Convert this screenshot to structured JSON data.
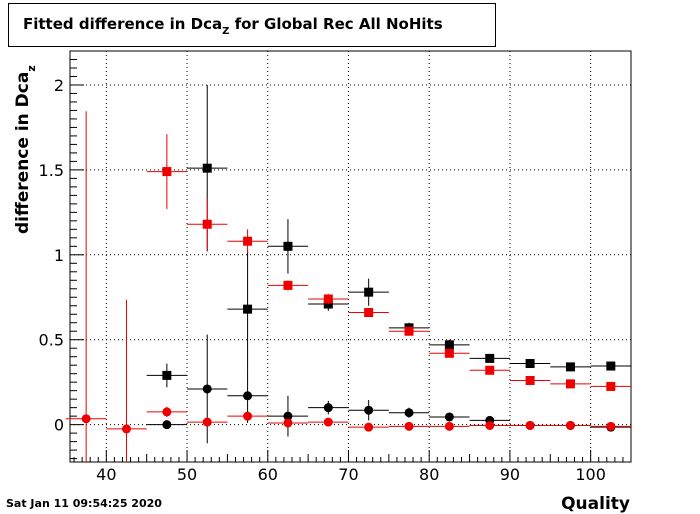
{
  "chart_data": {
    "type": "scatter",
    "title": "Fitted difference in Dca",
    "title_sub": "Z",
    "title_suffix": " for Global Rec All NoHits",
    "xlabel": "Quality",
    "ylabel": "difference in Dca",
    "ylabel_sub": "z",
    "xlim": [
      35.5,
      105
    ],
    "ylim": [
      -0.22,
      2.2
    ],
    "x_ticks": [
      40,
      50,
      60,
      70,
      80,
      90,
      100
    ],
    "y_ticks": [
      0,
      0.5,
      1,
      1.5,
      2
    ],
    "y_tick_labels": [
      "0",
      "0.5",
      "1",
      "1.5",
      "2"
    ],
    "grid": true,
    "bin_half_width": 2.5,
    "series": [
      {
        "color": "#000000",
        "marker": "square",
        "points": [
          {
            "x": 47.5,
            "y": 0.29,
            "err": 0.07
          },
          {
            "x": 52.5,
            "y": 1.51,
            "err": 0.49
          },
          {
            "x": 57.5,
            "y": 0.68,
            "err": 0.35
          },
          {
            "x": 62.5,
            "y": 1.05,
            "err": 0.16
          },
          {
            "x": 67.5,
            "y": 0.71,
            "err": 0.04
          },
          {
            "x": 72.5,
            "y": 0.78,
            "err": 0.08
          },
          {
            "x": 77.5,
            "y": 0.57,
            "err": 0.03
          },
          {
            "x": 82.5,
            "y": 0.47,
            "err": 0.03
          },
          {
            "x": 87.5,
            "y": 0.39,
            "err": 0.02
          },
          {
            "x": 92.5,
            "y": 0.36,
            "err": 0.01
          },
          {
            "x": 97.5,
            "y": 0.34,
            "err": 0.01
          },
          {
            "x": 102.5,
            "y": 0.345,
            "err": 0.01
          }
        ]
      },
      {
        "color": "#ee0000",
        "marker": "square",
        "points": [
          {
            "x": 47.5,
            "y": 1.49,
            "err": 0.22
          },
          {
            "x": 52.5,
            "y": 1.18,
            "err": 0.15
          },
          {
            "x": 57.5,
            "y": 1.08,
            "err": 0.07
          },
          {
            "x": 62.5,
            "y": 0.82,
            "err": 0.03
          },
          {
            "x": 67.5,
            "y": 0.74,
            "err": 0.03
          },
          {
            "x": 72.5,
            "y": 0.66,
            "err": 0.02
          },
          {
            "x": 77.5,
            "y": 0.55,
            "err": 0.02
          },
          {
            "x": 82.5,
            "y": 0.42,
            "err": 0.02
          },
          {
            "x": 87.5,
            "y": 0.32,
            "err": 0.01
          },
          {
            "x": 92.5,
            "y": 0.26,
            "err": 0.01
          },
          {
            "x": 97.5,
            "y": 0.24,
            "err": 0.01
          },
          {
            "x": 102.5,
            "y": 0.225,
            "err": 0.01
          }
        ]
      },
      {
        "color": "#000000",
        "marker": "circle",
        "points": [
          {
            "x": 47.5,
            "y": 0.0,
            "err": 0.02
          },
          {
            "x": 52.5,
            "y": 0.21,
            "err": 0.32
          },
          {
            "x": 57.5,
            "y": 0.17,
            "err": 0.16
          },
          {
            "x": 62.5,
            "y": 0.05,
            "err": 0.12
          },
          {
            "x": 67.5,
            "y": 0.1,
            "err": 0.04
          },
          {
            "x": 72.5,
            "y": 0.085,
            "err": 0.06
          },
          {
            "x": 77.5,
            "y": 0.07,
            "err": 0.03
          },
          {
            "x": 82.5,
            "y": 0.045,
            "err": 0.02
          },
          {
            "x": 87.5,
            "y": 0.025,
            "err": 0.01
          },
          {
            "x": 92.5,
            "y": -0.005,
            "err": 0.01
          },
          {
            "x": 97.5,
            "y": -0.005,
            "err": 0.01
          },
          {
            "x": 102.5,
            "y": -0.015,
            "err": 0.01
          }
        ]
      },
      {
        "color": "#ee0000",
        "marker": "circle",
        "points": [
          {
            "x": 37.5,
            "y": 0.035,
            "err": 1.81
          },
          {
            "x": 42.5,
            "y": -0.025,
            "err": 0.76
          },
          {
            "x": 47.5,
            "y": 0.075,
            "err": 0.03
          },
          {
            "x": 52.5,
            "y": 0.015,
            "err": 0.02
          },
          {
            "x": 57.5,
            "y": 0.05,
            "err": 0.02
          },
          {
            "x": 62.5,
            "y": 0.01,
            "err": 0.01
          },
          {
            "x": 67.5,
            "y": 0.015,
            "err": 0.01
          },
          {
            "x": 72.5,
            "y": -0.015,
            "err": 0.01
          },
          {
            "x": 77.5,
            "y": -0.01,
            "err": 0.01
          },
          {
            "x": 82.5,
            "y": -0.01,
            "err": 0.01
          },
          {
            "x": 87.5,
            "y": -0.005,
            "err": 0.01
          },
          {
            "x": 92.5,
            "y": -0.005,
            "err": 0.01
          },
          {
            "x": 97.5,
            "y": -0.005,
            "err": 0.01
          },
          {
            "x": 102.5,
            "y": -0.01,
            "err": 0.01
          }
        ]
      }
    ]
  },
  "footer": {
    "timestamp": "Sat Jan 11 09:54:25 2020"
  }
}
